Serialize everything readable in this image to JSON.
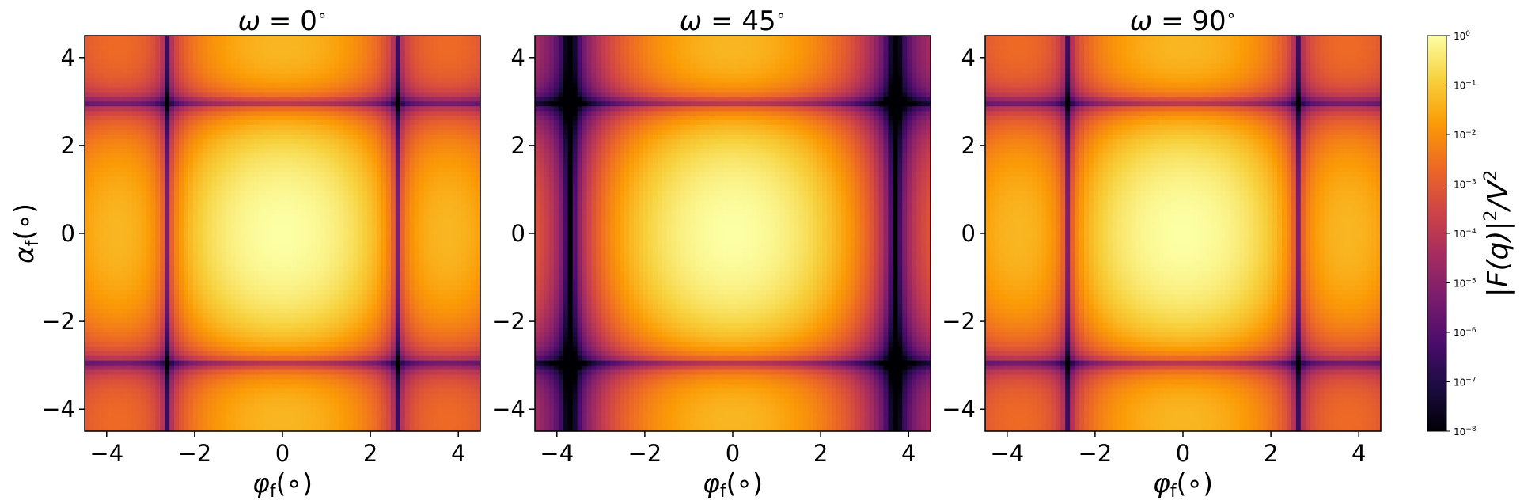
{
  "chart_data": [
    {
      "type": "heatmap",
      "title": "ω = 0 ∘",
      "title_omega": "ω",
      "title_eq": " = ",
      "title_value": "0",
      "title_unit": "∘",
      "omega_deg": 0,
      "xlabel": "φf(∘)",
      "xlabel_sym": "φ",
      "xlabel_sub": "f",
      "xlabel_unit": "(∘)",
      "ylabel": "αf(∘)",
      "ylabel_sym": "α",
      "ylabel_sub": "f",
      "ylabel_unit": "(∘)",
      "xlim": [
        -4.5,
        4.5
      ],
      "ylim": [
        -4.5,
        4.5
      ],
      "xticks": [
        -4,
        -2,
        0,
        2,
        4
      ],
      "xtick_labels": [
        "−4",
        "−2",
        "0",
        "2",
        "4"
      ],
      "yticks": [
        -4,
        -2,
        0,
        2,
        4
      ],
      "ytick_labels": [
        "−4",
        "−2",
        "0",
        "2",
        "4"
      ],
      "colormap": "inferno",
      "color_scale": "log",
      "grid": false
    },
    {
      "type": "heatmap",
      "title": "ω = 45 ∘",
      "title_omega": "ω",
      "title_eq": " = ",
      "title_value": "45",
      "title_unit": "∘",
      "omega_deg": 45,
      "xlabel": "φf(∘)",
      "xlabel_sym": "φ",
      "xlabel_sub": "f",
      "xlabel_unit": "(∘)",
      "xlim": [
        -4.5,
        4.5
      ],
      "ylim": [
        -4.5,
        4.5
      ],
      "xticks": [
        -4,
        -2,
        0,
        2,
        4
      ],
      "xtick_labels": [
        "−4",
        "−2",
        "0",
        "2",
        "4"
      ],
      "yticks": [
        -4,
        -2,
        0,
        2,
        4
      ],
      "ytick_labels": [
        "−4",
        "−2",
        "0",
        "2",
        "4"
      ],
      "colormap": "inferno",
      "color_scale": "log",
      "grid": false
    },
    {
      "type": "heatmap",
      "title": "ω = 90 ∘",
      "title_omega": "ω",
      "title_eq": " = ",
      "title_value": "90",
      "title_unit": "∘",
      "omega_deg": 90,
      "xlabel": "φf(∘)",
      "xlabel_sym": "φ",
      "xlabel_sub": "f",
      "xlabel_unit": "(∘)",
      "xlim": [
        -4.5,
        4.5
      ],
      "ylim": [
        -4.5,
        4.5
      ],
      "xticks": [
        -4,
        -2,
        0,
        2,
        4
      ],
      "xtick_labels": [
        "−4",
        "−2",
        "0",
        "2",
        "4"
      ],
      "yticks": [
        -4,
        -2,
        0,
        2,
        4
      ],
      "ytick_labels": [
        "−4",
        "−2",
        "0",
        "2",
        "4"
      ],
      "colormap": "inferno",
      "color_scale": "log",
      "grid": false
    }
  ],
  "colorbar": {
    "label": "|F(q)|2/V2",
    "label_main": "|F(q)|",
    "label_exp1": "2",
    "label_div": "/V",
    "label_exp2": "2",
    "scale": "log",
    "range": [
      1e-08,
      1
    ],
    "tick_base": "10",
    "tick_exponents": [
      "0",
      "−1",
      "−2",
      "−3",
      "−4",
      "−5",
      "−6",
      "−7",
      "−8"
    ],
    "colormap": "inferno",
    "colormap_stops": [
      "#000004",
      "#1b0c41",
      "#4a0c6b",
      "#781c6d",
      "#a52c60",
      "#cf4446",
      "#ed6925",
      "#fb9b06",
      "#f7d13d",
      "#fcffa4"
    ]
  }
}
